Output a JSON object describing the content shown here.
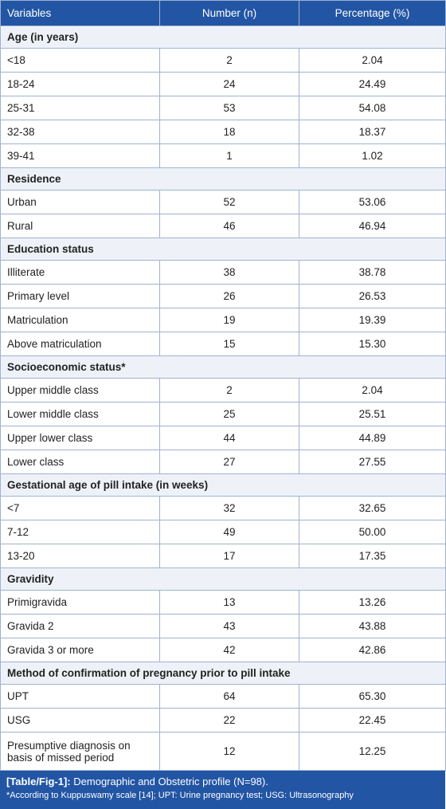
{
  "table": {
    "header": [
      "Variables",
      "Number (n)",
      "Percentage (%)"
    ],
    "sections": [
      {
        "title": "Age (in years)",
        "rows": [
          [
            "<18",
            "2",
            "2.04"
          ],
          [
            "18-24",
            "24",
            "24.49"
          ],
          [
            "25-31",
            "53",
            "54.08"
          ],
          [
            "32-38",
            "18",
            "18.37"
          ],
          [
            "39-41",
            "1",
            "1.02"
          ]
        ]
      },
      {
        "title": "Residence",
        "rows": [
          [
            "Urban",
            "52",
            "53.06"
          ],
          [
            "Rural",
            "46",
            "46.94"
          ]
        ]
      },
      {
        "title": "Education status",
        "rows": [
          [
            "Illiterate",
            "38",
            "38.78"
          ],
          [
            "Primary level",
            "26",
            "26.53"
          ],
          [
            "Matriculation",
            "19",
            "19.39"
          ],
          [
            "Above matriculation",
            "15",
            "15.30"
          ]
        ]
      },
      {
        "title": "Socioeconomic status*",
        "rows": [
          [
            "Upper middle class",
            "2",
            "2.04"
          ],
          [
            "Lower middle class",
            "25",
            "25.51"
          ],
          [
            "Upper lower class",
            "44",
            "44.89"
          ],
          [
            "Lower class",
            "27",
            "27.55"
          ]
        ]
      },
      {
        "title": "Gestational age of pill intake (in weeks)",
        "rows": [
          [
            "<7",
            "32",
            "32.65"
          ],
          [
            "7-12",
            "49",
            "50.00"
          ],
          [
            "13-20",
            "17",
            "17.35"
          ]
        ]
      },
      {
        "title": "Gravidity",
        "rows": [
          [
            "Primigravida",
            "13",
            "13.26"
          ],
          [
            "Gravida 2",
            "43",
            "43.88"
          ],
          [
            "Gravida 3 or more",
            "42",
            "42.86"
          ]
        ]
      },
      {
        "title": "Method of confirmation of pregnancy prior to pill intake",
        "rows": [
          [
            "UPT",
            "64",
            "65.30"
          ],
          [
            "USG",
            "22",
            "22.45"
          ],
          [
            "Presumptive diagnosis on basis of missed period",
            "12",
            "12.25"
          ]
        ]
      }
    ]
  },
  "caption": {
    "label": "[Table/Fig-1]:",
    "text": "Demographic and Obstetric profile (N=98).",
    "footnote": "*According to Kuppuswamy scale [14]; UPT: Urine pregnancy test; USG: Ultrasonography"
  }
}
